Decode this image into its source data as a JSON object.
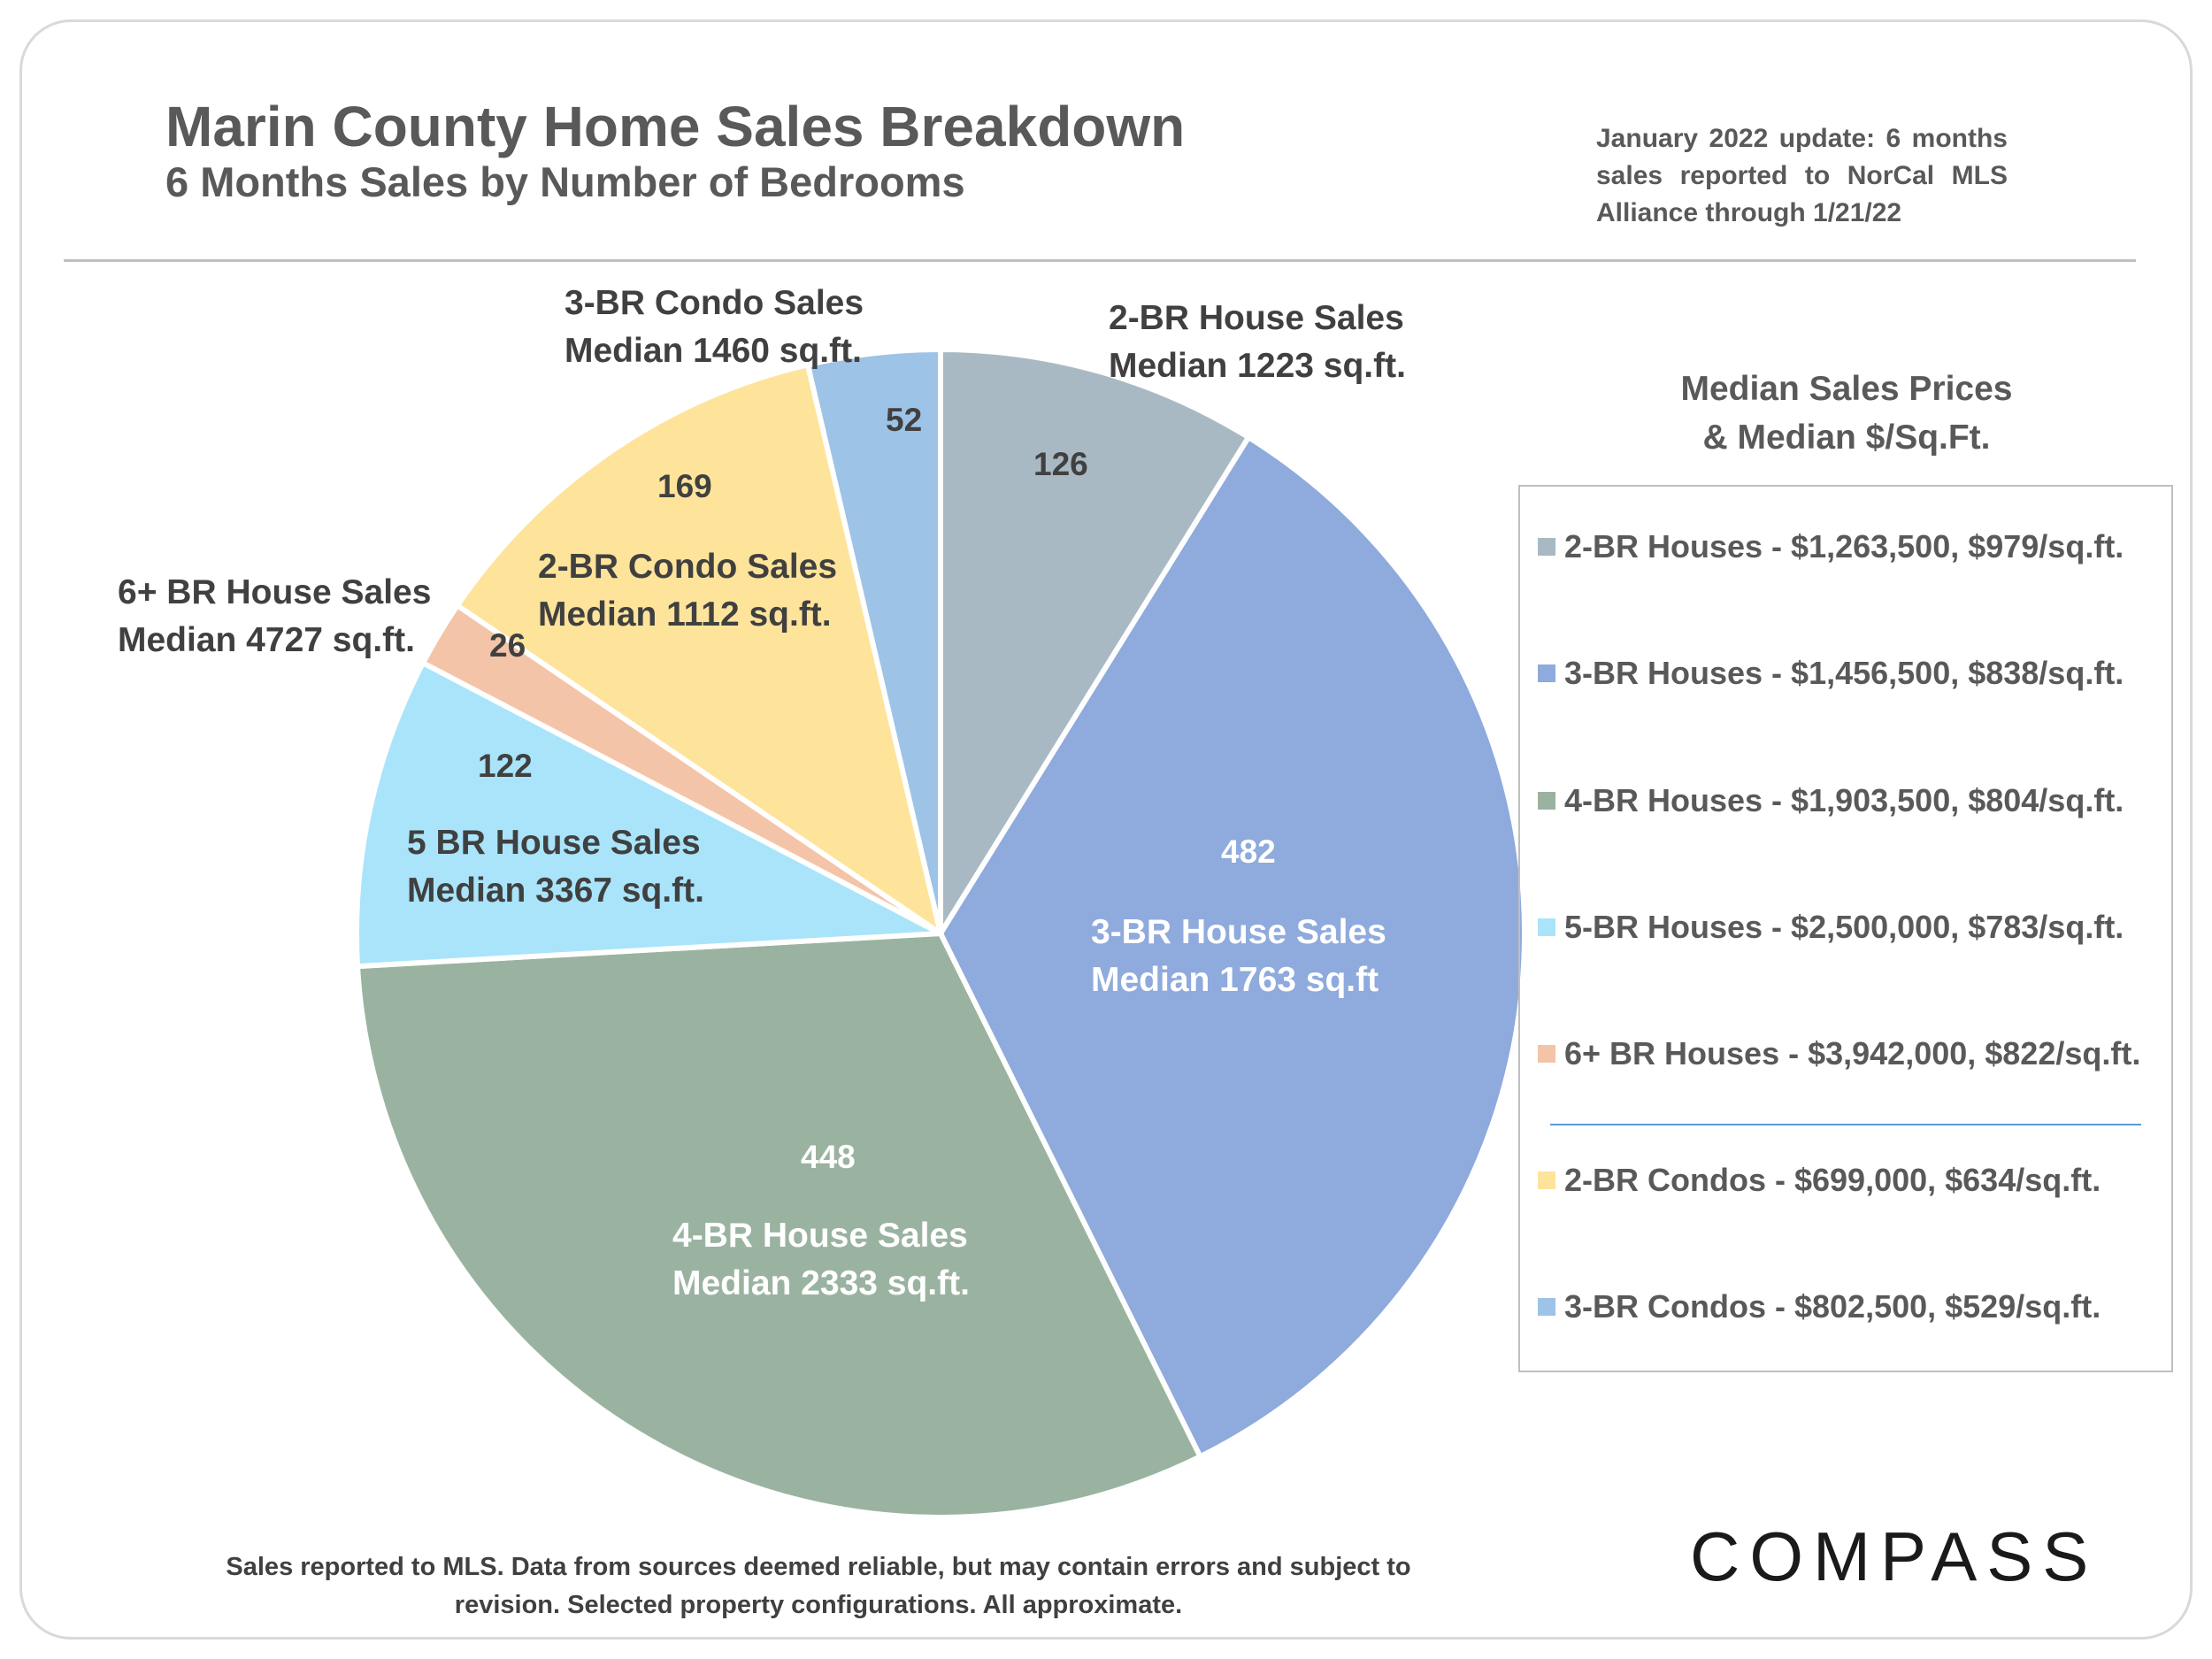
{
  "header": {
    "title": "Marin County Home Sales Breakdown",
    "subtitle": "6 Months Sales by Number of Bedrooms",
    "update_note": "January 2022 update: 6 months sales reported to NorCal MLS Alliance through 1/21/22"
  },
  "chart_data": {
    "type": "pie",
    "title": "Marin County Home Sales Breakdown",
    "subtitle": "6 Months Sales by Number of Bedrooms",
    "start": "12 o'clock",
    "direction": "clockwise",
    "slices": [
      {
        "value": 126,
        "label_line1": "2-BR House Sales",
        "label_line2": "Median 1223 sq.ft.",
        "color": "#a8b9c3"
      },
      {
        "value": 482,
        "label_line1": "3-BR House Sales",
        "label_line2": "Median 1763 sq.ft",
        "color": "#8faadc"
      },
      {
        "value": 448,
        "label_line1": "4-BR House Sales",
        "label_line2": "Median 2333 sq.ft.",
        "color": "#9ab3a0"
      },
      {
        "value": 122,
        "label_line1": "5 BR House Sales",
        "label_line2": "Median 3367 sq.ft.",
        "color": "#a9e4fa"
      },
      {
        "value": 26,
        "label_line1": "6+ BR House Sales",
        "label_line2": "Median 4727 sq.ft.",
        "color": "#f4c4a8"
      },
      {
        "value": 169,
        "label_line1": "2-BR Condo Sales",
        "label_line2": "Median 1112 sq.ft.",
        "color": "#fee49a"
      },
      {
        "value": 52,
        "label_line1": "3-BR Condo Sales",
        "label_line2": "Median 1460 sq.ft.",
        "color": "#9dc3e6"
      }
    ],
    "legend_position": "right"
  },
  "legend": {
    "heading_line1": "Median Sales Prices",
    "heading_line2": "& Median $/Sq.Ft.",
    "items": [
      {
        "label": "2-BR Houses - $1,263,500, $979/sq.ft.",
        "color": "#a8b9c3"
      },
      {
        "label": "3-BR Houses - $1,456,500, $838/sq.ft.",
        "color": "#8faadc"
      },
      {
        "label": "4-BR Houses - $1,903,500, $804/sq.ft.",
        "color": "#9ab3a0"
      },
      {
        "label": "5-BR Houses - $2,500,000, $783/sq.ft.",
        "color": "#a9e4fa"
      },
      {
        "label": "6+ BR Houses - $3,942,000, $822/sq.ft.",
        "color": "#f4c4a8"
      },
      {
        "label": "2-BR Condos - $699,000, $634/sq.ft.",
        "color": "#fee49a"
      },
      {
        "label": "3-BR Condos - $802,500, $529/sq.ft.",
        "color": "#9dc3e6"
      }
    ]
  },
  "footnote": "Sales reported to MLS. Data from sources deemed reliable, but may contain errors and subject to revision. Selected property configurations. All approximate.",
  "brand": "COMPASS"
}
